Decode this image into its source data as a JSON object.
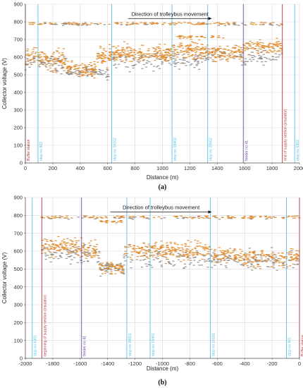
{
  "colors": {
    "orange": "#e08a2b",
    "gray": "#8c8c8c",
    "cyan": "#5bc0e8",
    "red": "#b0353a",
    "purple": "#6b4c9a",
    "grid": "#d9d9d9",
    "axis": "#555555"
  },
  "chart_data": [
    {
      "panel_label": "(a)",
      "type": "scatter",
      "title": "",
      "xlabel": "Distance (m)",
      "ylabel": "Collector voltage (V)",
      "xlim": [
        0,
        2000
      ],
      "ylim": [
        0,
        900
      ],
      "xticks": [
        0,
        200,
        400,
        600,
        800,
        1000,
        1200,
        1400,
        1600,
        1800,
        2000
      ],
      "yticks": [
        0,
        100,
        200,
        300,
        400,
        500,
        600,
        700,
        800,
        900
      ],
      "grid": true,
      "annotation": {
        "text": "Direction of trolleybus movement",
        "arrow_from": 750,
        "arrow_to": 1360,
        "y": 835
      },
      "markers": [
        {
          "x": 0,
          "label": "Buffer station",
          "color": "red"
        },
        {
          "x": 92,
          "label": "stop no 902",
          "color": "cyan"
        },
        {
          "x": 630,
          "label": "stop no 16102",
          "color": "cyan"
        },
        {
          "x": 1070,
          "label": "stop no 19402",
          "color": "cyan"
        },
        {
          "x": 1330,
          "label": "stop no 20002",
          "color": "cyan"
        },
        {
          "x": 1590,
          "label": "feeder no 41",
          "color": "purple"
        },
        {
          "x": 1875,
          "label": "end of supply section (insulator)",
          "color": "red"
        },
        {
          "x": 1965,
          "label": "stop no 6302",
          "color": "cyan"
        }
      ],
      "series": [
        {
          "color": "orange",
          "segments": [
            {
              "x": [
                0,
                92
              ],
              "center": 605,
              "spread": 70,
              "count": 35
            },
            {
              "x": [
                92,
                300
              ],
              "center": 580,
              "spread": 65,
              "count": 110
            },
            {
              "x": [
                300,
                520
              ],
              "center": 530,
              "spread": 45,
              "count": 110
            },
            {
              "x": [
                520,
                630
              ],
              "center": 600,
              "spread": 70,
              "count": 60
            },
            {
              "x": [
                630,
                1070
              ],
              "center": 620,
              "spread": 60,
              "count": 220
            },
            {
              "x": [
                1070,
                1330
              ],
              "center": 640,
              "spread": 70,
              "count": 130
            },
            {
              "x": [
                1330,
                1590
              ],
              "center": 620,
              "spread": 55,
              "count": 120
            },
            {
              "x": [
                1590,
                1875
              ],
              "center": 660,
              "spread": 45,
              "count": 110
            }
          ],
          "bands": [
            {
              "x": [
                0,
                1875
              ],
              "y": 790,
              "count": 140
            },
            {
              "x": [
                1100,
                1460
              ],
              "y": 715,
              "count": 30
            }
          ]
        },
        {
          "color": "gray",
          "segments": [
            {
              "x": [
                0,
                300
              ],
              "center": 560,
              "spread": 60,
              "count": 50
            },
            {
              "x": [
                300,
                630
              ],
              "center": 510,
              "spread": 40,
              "count": 60
            },
            {
              "x": [
                630,
                1330
              ],
              "center": 580,
              "spread": 65,
              "count": 110
            },
            {
              "x": [
                1330,
                1875
              ],
              "center": 600,
              "spread": 55,
              "count": 70
            }
          ],
          "bands": [
            {
              "x": [
                0,
                1875
              ],
              "y": 785,
              "count": 40
            }
          ]
        }
      ]
    },
    {
      "panel_label": "(b)",
      "type": "scatter",
      "title": "",
      "xlabel": "Distance (m)",
      "ylabel": "Collector voltage (V)",
      "xlim": [
        -2000,
        0
      ],
      "ylim": [
        0,
        900
      ],
      "xticks": [
        -2000,
        -1800,
        -1600,
        -1400,
        -1200,
        -1000,
        -800,
        -600,
        -400,
        -200,
        0
      ],
      "yticks": [
        0,
        100,
        200,
        300,
        400,
        500,
        600,
        700,
        800,
        900
      ],
      "grid": true,
      "annotation": {
        "text": "Direction of trolleybus movement",
        "arrow_from": -1380,
        "arrow_to": -640,
        "y": 835
      },
      "markers": [
        {
          "x": -1950,
          "label": "stop no 6301",
          "color": "cyan"
        },
        {
          "x": -1880,
          "label": "beginning of supply section (insulator)",
          "color": "red"
        },
        {
          "x": -1590,
          "label": "feeder no 41",
          "color": "purple"
        },
        {
          "x": -1260,
          "label": "stop no 20001",
          "color": "cyan"
        },
        {
          "x": -1090,
          "label": "stop no 19401",
          "color": "cyan"
        },
        {
          "x": -650,
          "label": "stop no 16101",
          "color": "cyan"
        },
        {
          "x": -95,
          "label": "stop no 901",
          "color": "cyan"
        },
        {
          "x": 0,
          "label": "Buffer station",
          "color": "red"
        }
      ],
      "series": [
        {
          "color": "orange",
          "segments": [
            {
              "x": [
                -1880,
                -1590
              ],
              "center": 625,
              "spread": 55,
              "count": 120
            },
            {
              "x": [
                -1590,
                -1460
              ],
              "center": 600,
              "spread": 60,
              "count": 55
            },
            {
              "x": [
                -1460,
                -1280
              ],
              "center": 510,
              "spread": 40,
              "count": 80
            },
            {
              "x": [
                -1280,
                -650
              ],
              "center": 600,
              "spread": 60,
              "count": 250
            },
            {
              "x": [
                -650,
                -400
              ],
              "center": 570,
              "spread": 60,
              "count": 100
            },
            {
              "x": [
                -400,
                -95
              ],
              "center": 560,
              "spread": 60,
              "count": 120
            },
            {
              "x": [
                -95,
                0
              ],
              "center": 570,
              "spread": 60,
              "count": 40
            }
          ],
          "bands": [
            {
              "x": [
                -1880,
                0
              ],
              "y": 790,
              "count": 130
            },
            {
              "x": [
                -1460,
                -1290
              ],
              "y": 765,
              "count": 20
            }
          ]
        },
        {
          "color": "gray",
          "segments": [
            {
              "x": [
                -1880,
                -1460
              ],
              "center": 580,
              "spread": 60,
              "count": 70
            },
            {
              "x": [
                -1460,
                -1280
              ],
              "center": 500,
              "spread": 40,
              "count": 40
            },
            {
              "x": [
                -1280,
                0
              ],
              "center": 550,
              "spread": 65,
              "count": 180
            }
          ],
          "bands": [
            {
              "x": [
                -1880,
                0
              ],
              "y": 785,
              "count": 35
            }
          ]
        }
      ]
    }
  ]
}
